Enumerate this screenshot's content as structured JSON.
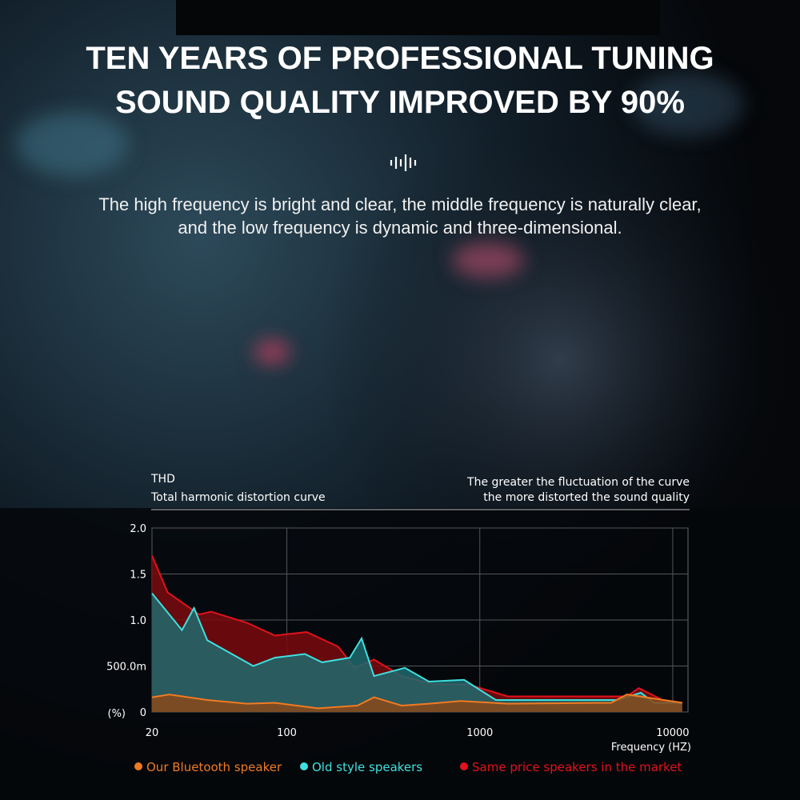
{
  "header": {
    "title_lines": [
      "TEN YEARS OF PROFESSIONAL TUNING",
      "SOUND QUALITY IMPROVED BY 90%"
    ],
    "subtitle_lines": [
      "The high frequency is bright and clear, the middle frequency is naturally clear,",
      "and the low frequency is dynamic and three-dimensional."
    ]
  },
  "chart_data": {
    "type": "area",
    "title": "THD",
    "subtitle": "Total harmonic distortion curve",
    "note_lines": [
      "The greater the fluctuation of the curve",
      "the more distorted the sound quality"
    ],
    "x_label": "Frequency (HZ)",
    "y_label": "(%)",
    "log_x": true,
    "grid": true,
    "xlim": [
      20,
      12000
    ],
    "xticks": [
      20,
      100,
      1000,
      10000
    ],
    "ylim": [
      0,
      2
    ],
    "yticks": [
      0,
      {
        "value": 0.5,
        "label": "500.0m"
      },
      {
        "value": 1,
        "label": "1.0"
      },
      {
        "value": 1.5,
        "label": "1.5"
      },
      {
        "value": 2,
        "label": "2.0"
      }
    ],
    "series": [
      {
        "name": "Same price speakers in the market",
        "color": "#e3121c",
        "x": [
          20,
          24.1,
          35.1,
          40.5,
          62.2,
          86.7,
          126.6,
          184.8,
          223.6,
          282.9,
          394,
          575,
          870,
          1393,
          5790,
          6670,
          8850,
          11200
        ],
        "values": [
          1.7,
          1.3,
          1.06,
          1.09,
          0.97,
          0.83,
          0.87,
          0.71,
          0.48,
          0.57,
          0.39,
          0.3,
          0.3,
          0.17,
          0.17,
          0.26,
          0.13,
          0.1
        ]
      },
      {
        "name": "Old style speakers",
        "color": "#3fe0de",
        "x": [
          20,
          28.6,
          33.0,
          38.7,
          67.0,
          86.7,
          124.0,
          152.2,
          212,
          244,
          282.9,
          409,
          545,
          829,
          1212,
          5170,
          6840,
          8000,
          11200
        ],
        "values": [
          1.29,
          0.89,
          1.13,
          0.78,
          0.5,
          0.59,
          0.63,
          0.54,
          0.59,
          0.8,
          0.39,
          0.48,
          0.33,
          0.35,
          0.13,
          0.13,
          0.21,
          0.1,
          0.1
        ]
      },
      {
        "name": "Our Bluetooth speaker",
        "color": "#f07a22",
        "x": [
          20,
          24.6,
          38.7,
          62.2,
          86.7,
          145,
          232,
          282.9,
          394,
          545,
          795,
          1393,
          4800,
          5790,
          11200
        ],
        "values": [
          0.16,
          0.19,
          0.13,
          0.09,
          0.1,
          0.04,
          0.07,
          0.16,
          0.07,
          0.09,
          0.12,
          0.09,
          0.1,
          0.19,
          0.1
        ]
      }
    ]
  }
}
